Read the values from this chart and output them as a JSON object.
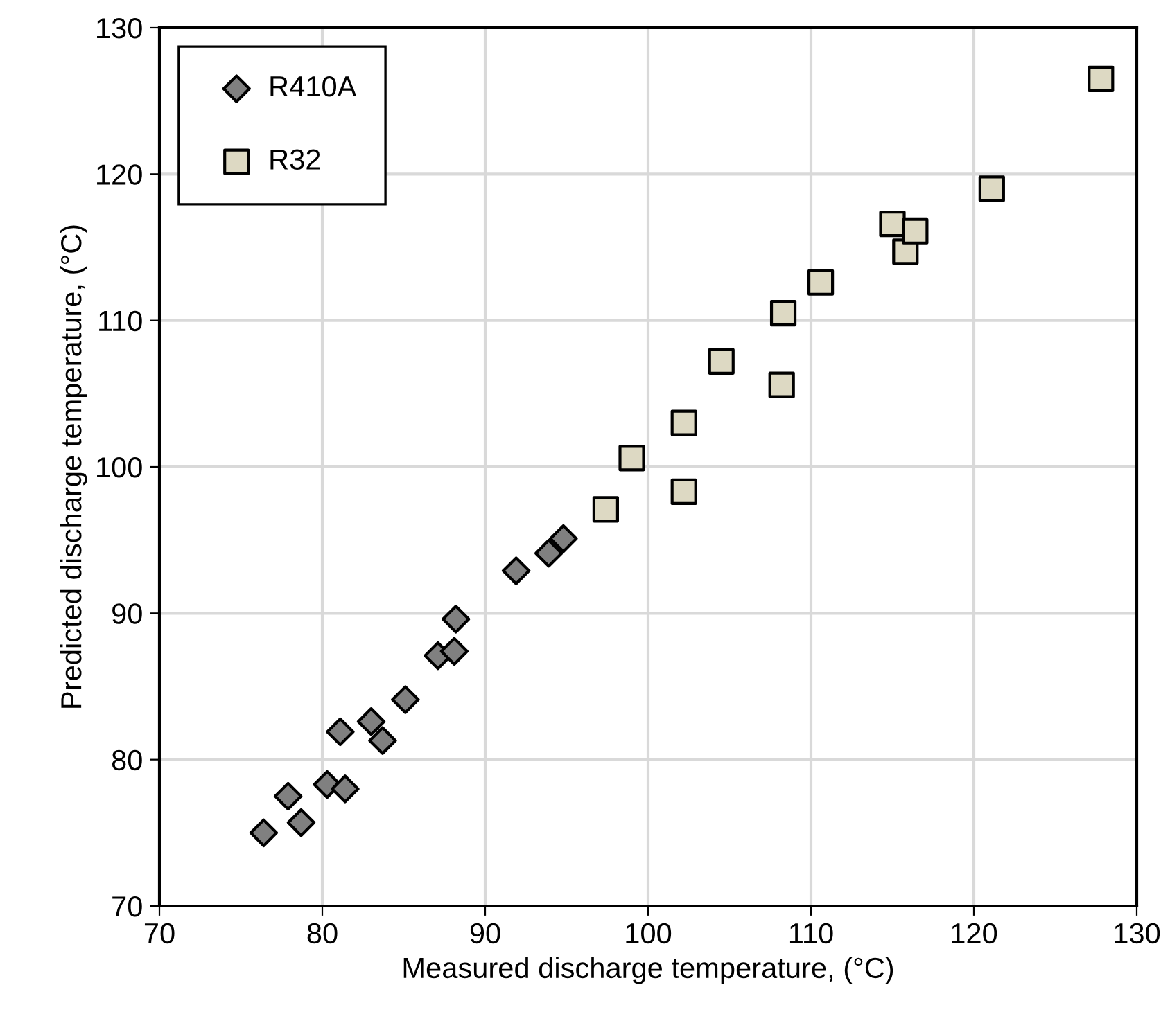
{
  "chart_data": {
    "type": "scatter",
    "xlabel": "Measured discharge temperature, (°C)",
    "ylabel": "Predicted discharge temperature, (°C)",
    "xlim": [
      70,
      130
    ],
    "xticks": [
      70,
      80,
      90,
      100,
      110,
      120,
      130
    ],
    "ylim": [
      70,
      130
    ],
    "yticks": [
      70,
      80,
      90,
      100,
      110,
      120,
      130
    ],
    "grid": true,
    "legend": "top left",
    "series": [
      {
        "name": "R410A",
        "color": "#808080",
        "marker": "diamond",
        "x": [
          76.4,
          77.9,
          78.7,
          80.3,
          81.1,
          81.4,
          83.0,
          83.7,
          85.1,
          87.1,
          88.1,
          88.2,
          91.9,
          93.9,
          94.8
        ],
        "values": [
          75.0,
          77.5,
          75.7,
          78.3,
          81.9,
          78.0,
          82.6,
          81.3,
          84.1,
          87.1,
          87.4,
          89.6,
          92.9,
          94.1,
          95.1
        ]
      },
      {
        "name": "R32",
        "color": "#ddd9c3",
        "marker": "square",
        "x": [
          97.4,
          99.0,
          102.2,
          102.2,
          104.5,
          108.2,
          108.3,
          110.6,
          115.0,
          115.8,
          116.4,
          121.1,
          127.8
        ],
        "values": [
          97.1,
          100.6,
          98.3,
          103.0,
          107.2,
          105.6,
          110.5,
          112.6,
          116.6,
          114.7,
          116.1,
          119.0,
          126.5
        ]
      }
    ]
  }
}
